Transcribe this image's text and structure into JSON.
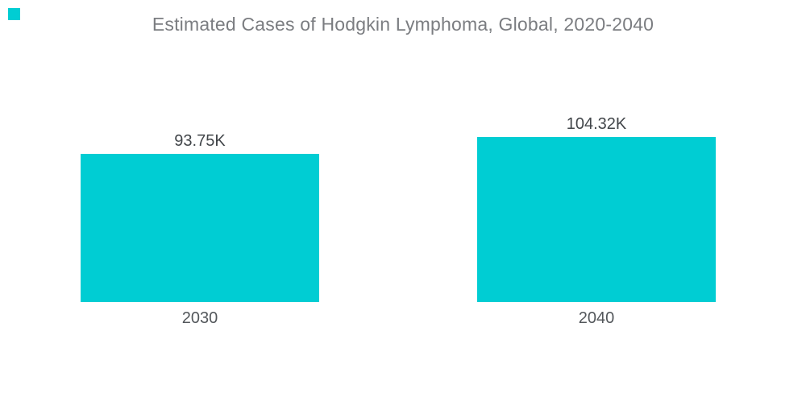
{
  "page": {
    "background": "#FFFFFF"
  },
  "brand": {
    "logo_mark": "teal-square"
  },
  "colors": {
    "bar": "#00CDD3",
    "title_text": "#7B7D81",
    "value_text": "#42464A",
    "axis_text": "#53575B",
    "background": "#FFFFFF"
  },
  "chart_data": {
    "type": "bar",
    "title": "Estimated Cases of Hodgkin Lymphoma, Global, 2020-2040",
    "categories": [
      "2030",
      "2040"
    ],
    "values": [
      93.75,
      104.32
    ],
    "unit": "K",
    "value_labels": [
      "93.75K",
      "104.32K"
    ],
    "series": [
      {
        "name": "Estimated Cases",
        "values": [
          93.75,
          104.32
        ]
      }
    ],
    "ylim": [
      0,
      104.32
    ],
    "grid": false,
    "legend": false,
    "axes_shown": false,
    "bar_color": "#00CDD3",
    "orientation": "vertical",
    "value_label_position": "above-bar",
    "category_label_position": "below-bar"
  }
}
